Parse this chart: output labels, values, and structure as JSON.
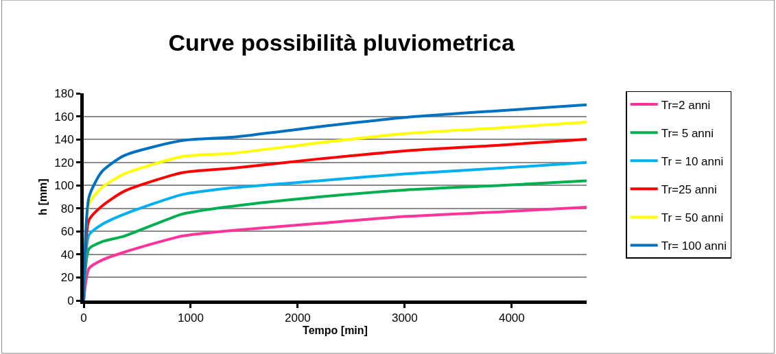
{
  "chart_data": {
    "type": "line",
    "title": "Curve possibilità pluviometrica",
    "xlabel": "Tempo [min]",
    "ylabel": "h [mm]",
    "x": [
      0,
      50,
      170,
      380,
      920,
      1400,
      2200,
      3000,
      3900,
      4700
    ],
    "series": [
      {
        "name": "Tr=2 anni",
        "color": "#ff3399",
        "values": [
          0,
          28,
          35,
          42,
          56,
          61,
          67,
          73,
          77,
          81
        ]
      },
      {
        "name": "Tr= 5 anni",
        "color": "#00b050",
        "values": [
          0,
          45,
          51,
          56,
          75,
          82,
          90,
          96,
          100,
          104
        ]
      },
      {
        "name": "Tr = 10 anni",
        "color": "#00b0f0",
        "values": [
          0,
          57,
          66,
          75,
          92,
          98,
          104,
          110,
          115,
          120
        ]
      },
      {
        "name": "Tr=25 anni",
        "color": "#ff0000",
        "values": [
          0,
          70,
          82,
          95,
          111,
          115,
          123,
          130,
          135,
          140
        ]
      },
      {
        "name": "Tr = 50 anni",
        "color": "#ffff00",
        "values": [
          0,
          84,
          98,
          110,
          125,
          128,
          137,
          145,
          150,
          155
        ]
      },
      {
        "name": "Tr= 100 anni",
        "color": "#0070c0",
        "values": [
          0,
          90,
          112,
          126,
          139,
          142,
          151,
          159,
          165,
          170
        ]
      }
    ],
    "xlim": [
      0,
      4700
    ],
    "xticks": [
      0,
      1000,
      2000,
      3000,
      4000
    ],
    "ylim": [
      0,
      180
    ],
    "yticks": [
      0,
      20,
      40,
      60,
      80,
      100,
      120,
      140,
      160,
      180
    ],
    "grid": "y",
    "legend": "right",
    "marker": "none",
    "line_style": "solid"
  }
}
